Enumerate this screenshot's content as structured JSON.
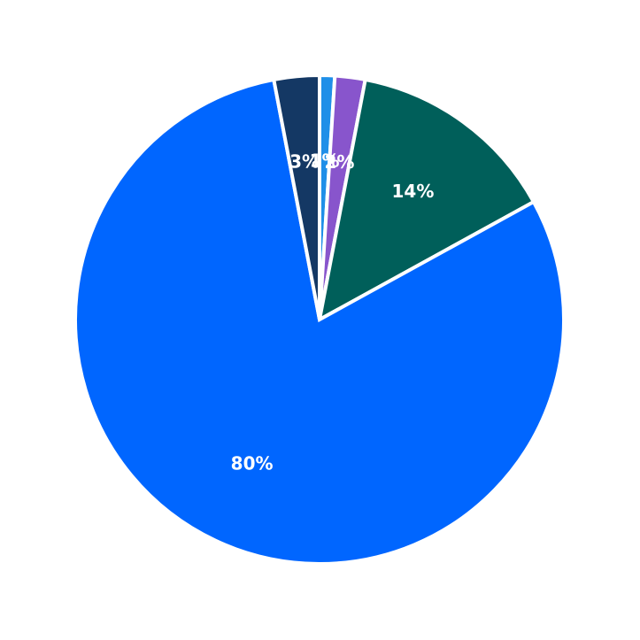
{
  "chart_data": {
    "type": "pie",
    "title": "",
    "start_angle_deg": 90,
    "direction": "clockwise",
    "legend": "none",
    "slices": [
      {
        "label": "1%",
        "value": 1,
        "color": "#1f8fe8"
      },
      {
        "label": "2%",
        "value": 2,
        "color": "#8855cc"
      },
      {
        "label": "14%",
        "value": 14,
        "color": "#005f5a"
      },
      {
        "label": "80%",
        "value": 80,
        "color": "#0066ff"
      },
      {
        "label": "3%",
        "value": 3,
        "color": "#143864"
      }
    ]
  }
}
